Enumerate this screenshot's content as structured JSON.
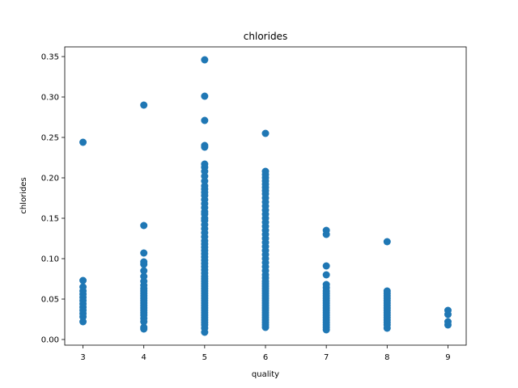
{
  "chart_data": {
    "type": "scatter",
    "title": "chlorides",
    "xlabel": "quality",
    "ylabel": "chlorides",
    "xlim": [
      2.7,
      9.3
    ],
    "ylim": [
      -0.007,
      0.362
    ],
    "xticks": [
      3,
      4,
      5,
      6,
      7,
      8,
      9
    ],
    "yticks": [
      0.0,
      0.05,
      0.1,
      0.15,
      0.2,
      0.25,
      0.3,
      0.35
    ],
    "ytick_labels": [
      "0.00",
      "0.05",
      "0.10",
      "0.15",
      "0.20",
      "0.25",
      "0.30",
      "0.35"
    ],
    "grid": false,
    "color": "#1f77b4",
    "points": [
      {
        "x": 3,
        "y": [
          0.022,
          0.028,
          0.032,
          0.036,
          0.04,
          0.044,
          0.048,
          0.052,
          0.056,
          0.06,
          0.065,
          0.073,
          0.244
        ]
      },
      {
        "x": 4,
        "y": [
          0.013,
          0.015,
          0.022,
          0.026,
          0.03,
          0.033,
          0.036,
          0.039,
          0.042,
          0.045,
          0.048,
          0.051,
          0.054,
          0.057,
          0.06,
          0.063,
          0.067,
          0.072,
          0.078,
          0.085,
          0.093,
          0.096,
          0.107,
          0.141,
          0.29
        ]
      },
      {
        "x": 5,
        "y": [
          0.009,
          0.014,
          0.018,
          0.021,
          0.024,
          0.027,
          0.03,
          0.033,
          0.036,
          0.039,
          0.042,
          0.045,
          0.048,
          0.051,
          0.054,
          0.057,
          0.06,
          0.063,
          0.066,
          0.069,
          0.072,
          0.075,
          0.078,
          0.082,
          0.086,
          0.09,
          0.094,
          0.098,
          0.102,
          0.106,
          0.11,
          0.114,
          0.118,
          0.122,
          0.127,
          0.132,
          0.137,
          0.142,
          0.147,
          0.15,
          0.155,
          0.158,
          0.163,
          0.168,
          0.173,
          0.178,
          0.182,
          0.186,
          0.19,
          0.196,
          0.202,
          0.208,
          0.213,
          0.217,
          0.238,
          0.24,
          0.271,
          0.301,
          0.346
        ]
      },
      {
        "x": 6,
        "y": [
          0.015,
          0.018,
          0.021,
          0.024,
          0.027,
          0.03,
          0.033,
          0.036,
          0.039,
          0.042,
          0.045,
          0.048,
          0.051,
          0.054,
          0.057,
          0.06,
          0.063,
          0.066,
          0.069,
          0.072,
          0.076,
          0.08,
          0.085,
          0.09,
          0.095,
          0.1,
          0.105,
          0.11,
          0.115,
          0.12,
          0.125,
          0.13,
          0.135,
          0.14,
          0.145,
          0.15,
          0.155,
          0.16,
          0.165,
          0.17,
          0.175,
          0.18,
          0.184,
          0.188,
          0.192,
          0.196,
          0.2,
          0.204,
          0.208,
          0.255
        ]
      },
      {
        "x": 7,
        "y": [
          0.012,
          0.015,
          0.018,
          0.021,
          0.024,
          0.027,
          0.03,
          0.033,
          0.036,
          0.039,
          0.042,
          0.045,
          0.048,
          0.051,
          0.054,
          0.057,
          0.06,
          0.064,
          0.068,
          0.08,
          0.091,
          0.13,
          0.135
        ]
      },
      {
        "x": 8,
        "y": [
          0.014,
          0.018,
          0.021,
          0.024,
          0.027,
          0.03,
          0.033,
          0.036,
          0.039,
          0.042,
          0.045,
          0.048,
          0.051,
          0.054,
          0.057,
          0.06,
          0.121
        ]
      },
      {
        "x": 9,
        "y": [
          0.018,
          0.022,
          0.031,
          0.036
        ]
      }
    ]
  }
}
